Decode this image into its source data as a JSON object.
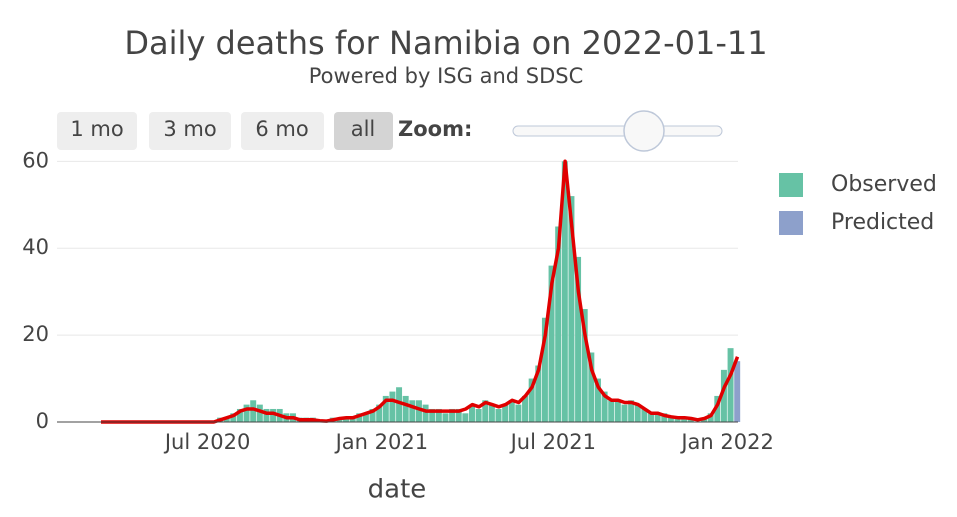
{
  "controls": {
    "range_buttons": [
      "1 mo",
      "3 mo",
      "6 mo",
      "all"
    ],
    "zoom_label": "Zoom:"
  },
  "chart_data": {
    "type": "bar",
    "title": "Daily deaths for Namibia on 2022-01-11",
    "subtitle": "Powered by ISG and SDSC",
    "x_label": "date",
    "x": [
      "2020-03-07",
      "2020-03-14",
      "2020-03-21",
      "2020-03-28",
      "2020-04-04",
      "2020-04-11",
      "2020-04-18",
      "2020-04-25",
      "2020-05-02",
      "2020-05-09",
      "2020-05-16",
      "2020-05-23",
      "2020-05-30",
      "2020-06-06",
      "2020-06-13",
      "2020-06-20",
      "2020-06-27",
      "2020-07-04",
      "2020-07-11",
      "2020-07-18",
      "2020-07-25",
      "2020-08-01",
      "2020-08-08",
      "2020-08-15",
      "2020-08-22",
      "2020-08-29",
      "2020-09-05",
      "2020-09-12",
      "2020-09-19",
      "2020-09-26",
      "2020-10-03",
      "2020-10-10",
      "2020-10-17",
      "2020-10-24",
      "2020-10-31",
      "2020-11-07",
      "2020-11-14",
      "2020-11-21",
      "2020-11-28",
      "2020-12-05",
      "2020-12-12",
      "2020-12-19",
      "2020-12-26",
      "2021-01-02",
      "2021-01-09",
      "2021-01-16",
      "2021-01-23",
      "2021-01-30",
      "2021-02-06",
      "2021-02-13",
      "2021-02-20",
      "2021-02-27",
      "2021-03-06",
      "2021-03-13",
      "2021-03-20",
      "2021-03-27",
      "2021-04-03",
      "2021-04-10",
      "2021-04-17",
      "2021-04-24",
      "2021-05-01",
      "2021-05-08",
      "2021-05-15",
      "2021-05-22",
      "2021-05-29",
      "2021-06-05",
      "2021-06-12",
      "2021-06-19",
      "2021-06-26",
      "2021-07-03",
      "2021-07-10",
      "2021-07-17",
      "2021-07-24",
      "2021-07-31",
      "2021-08-07",
      "2021-08-14",
      "2021-08-21",
      "2021-08-28",
      "2021-09-04",
      "2021-09-11",
      "2021-09-18",
      "2021-09-25",
      "2021-10-02",
      "2021-10-09",
      "2021-10-16",
      "2021-10-23",
      "2021-10-30",
      "2021-11-06",
      "2021-11-13",
      "2021-11-20",
      "2021-11-27",
      "2021-12-04",
      "2021-12-11",
      "2021-12-18",
      "2021-12-25",
      "2022-01-01",
      "2022-01-08"
    ],
    "series": [
      {
        "name": "Observed",
        "color": "#66c2a5",
        "values": [
          0,
          0,
          0,
          0,
          0,
          0,
          0,
          0,
          0,
          0,
          0,
          0,
          0,
          0,
          0,
          0,
          0,
          0,
          1,
          1,
          2,
          3,
          4,
          5,
          4,
          3,
          3,
          3,
          2,
          2,
          1,
          1,
          1,
          0,
          0,
          1,
          1,
          1,
          1,
          2,
          2,
          3,
          4,
          6,
          7,
          8,
          6,
          5,
          5,
          4,
          3,
          3,
          2,
          3,
          3,
          2,
          4,
          3,
          5,
          4,
          3,
          4,
          5,
          4,
          6,
          10,
          13,
          24,
          36,
          45,
          60,
          52,
          38,
          26,
          16,
          10,
          7,
          5,
          5,
          4,
          5,
          4,
          3,
          2,
          2,
          2,
          1,
          1,
          1,
          1,
          0,
          1,
          2,
          6,
          12,
          17,
          null
        ]
      },
      {
        "name": "Predicted",
        "color": "#8da0cb",
        "values": [
          null,
          null,
          null,
          null,
          null,
          null,
          null,
          null,
          null,
          null,
          null,
          null,
          null,
          null,
          null,
          null,
          null,
          null,
          null,
          null,
          null,
          null,
          null,
          null,
          null,
          null,
          null,
          null,
          null,
          null,
          null,
          null,
          null,
          null,
          null,
          null,
          null,
          null,
          null,
          null,
          null,
          null,
          null,
          null,
          null,
          null,
          null,
          null,
          null,
          null,
          null,
          null,
          null,
          null,
          null,
          null,
          null,
          null,
          null,
          null,
          null,
          null,
          null,
          null,
          null,
          null,
          null,
          null,
          null,
          null,
          null,
          null,
          null,
          null,
          null,
          null,
          null,
          null,
          null,
          null,
          null,
          null,
          null,
          null,
          null,
          null,
          null,
          null,
          null,
          null,
          null,
          null,
          null,
          null,
          null,
          null,
          14
        ]
      }
    ],
    "trend": {
      "color": "#e00000",
      "values": [
        0,
        0,
        0,
        0,
        0,
        0,
        0,
        0,
        0,
        0,
        0,
        0,
        0,
        0,
        0,
        0,
        0,
        0,
        0.5,
        1,
        1.5,
        2.5,
        3,
        3,
        2.5,
        2,
        2,
        1.5,
        1,
        1,
        0.5,
        0.5,
        0.5,
        0.3,
        0.2,
        0.5,
        0.8,
        1,
        1,
        1.5,
        2,
        2.5,
        3.5,
        5,
        5,
        4.5,
        4,
        3.5,
        3,
        2.5,
        2.5,
        2.5,
        2.5,
        2.5,
        2.5,
        3,
        4,
        3.5,
        4.5,
        4,
        3.5,
        4,
        5,
        4.5,
        6,
        8,
        12,
        20,
        32,
        40,
        60,
        45,
        30,
        20,
        12,
        8,
        6,
        5,
        5,
        4.5,
        4.5,
        4,
        3,
        2,
        2,
        1.5,
        1.2,
        1,
        1,
        0.8,
        0.5,
        0.8,
        1.5,
        4,
        8,
        11,
        15
      ]
    },
    "xlim": [
      "2020-01-24",
      "2022-01-12"
    ],
    "xticks": [
      {
        "value": "2020-07-01",
        "label": "Jul 2020"
      },
      {
        "value": "2021-01-01",
        "label": "Jan 2021"
      },
      {
        "value": "2021-07-01",
        "label": "Jul 2021"
      },
      {
        "value": "2022-01-01",
        "label": "Jan 2022"
      }
    ],
    "ylim": [
      0,
      61
    ],
    "yticks": [
      0,
      20,
      40,
      60
    ],
    "grid": true
  }
}
